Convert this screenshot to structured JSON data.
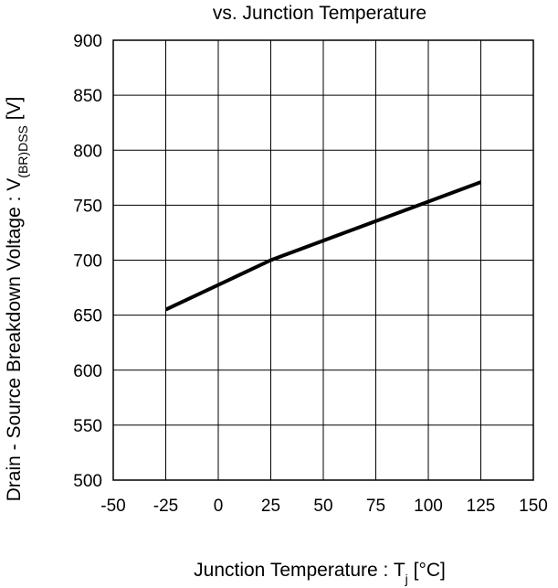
{
  "chart_data": {
    "type": "line",
    "title": "vs. Junction Temperature",
    "xlabel": {
      "main": "Junction Temperature : T",
      "sub": "j",
      "unit": " [°C]"
    },
    "ylabel": {
      "main": "Drain - Source Breakdown Voltage : V",
      "sub": "(BR)DSS",
      "unit": " [V]"
    },
    "xlim": [
      -50,
      150
    ],
    "ylim": [
      500,
      900
    ],
    "xticks": [
      -50,
      -25,
      0,
      25,
      50,
      75,
      100,
      125,
      150
    ],
    "yticks": [
      500,
      550,
      600,
      650,
      700,
      750,
      800,
      850,
      900
    ],
    "grid": true,
    "series": [
      {
        "x": [
          -25,
          25,
          125
        ],
        "y": [
          655,
          700,
          771
        ]
      }
    ],
    "line_color": "#000000"
  }
}
